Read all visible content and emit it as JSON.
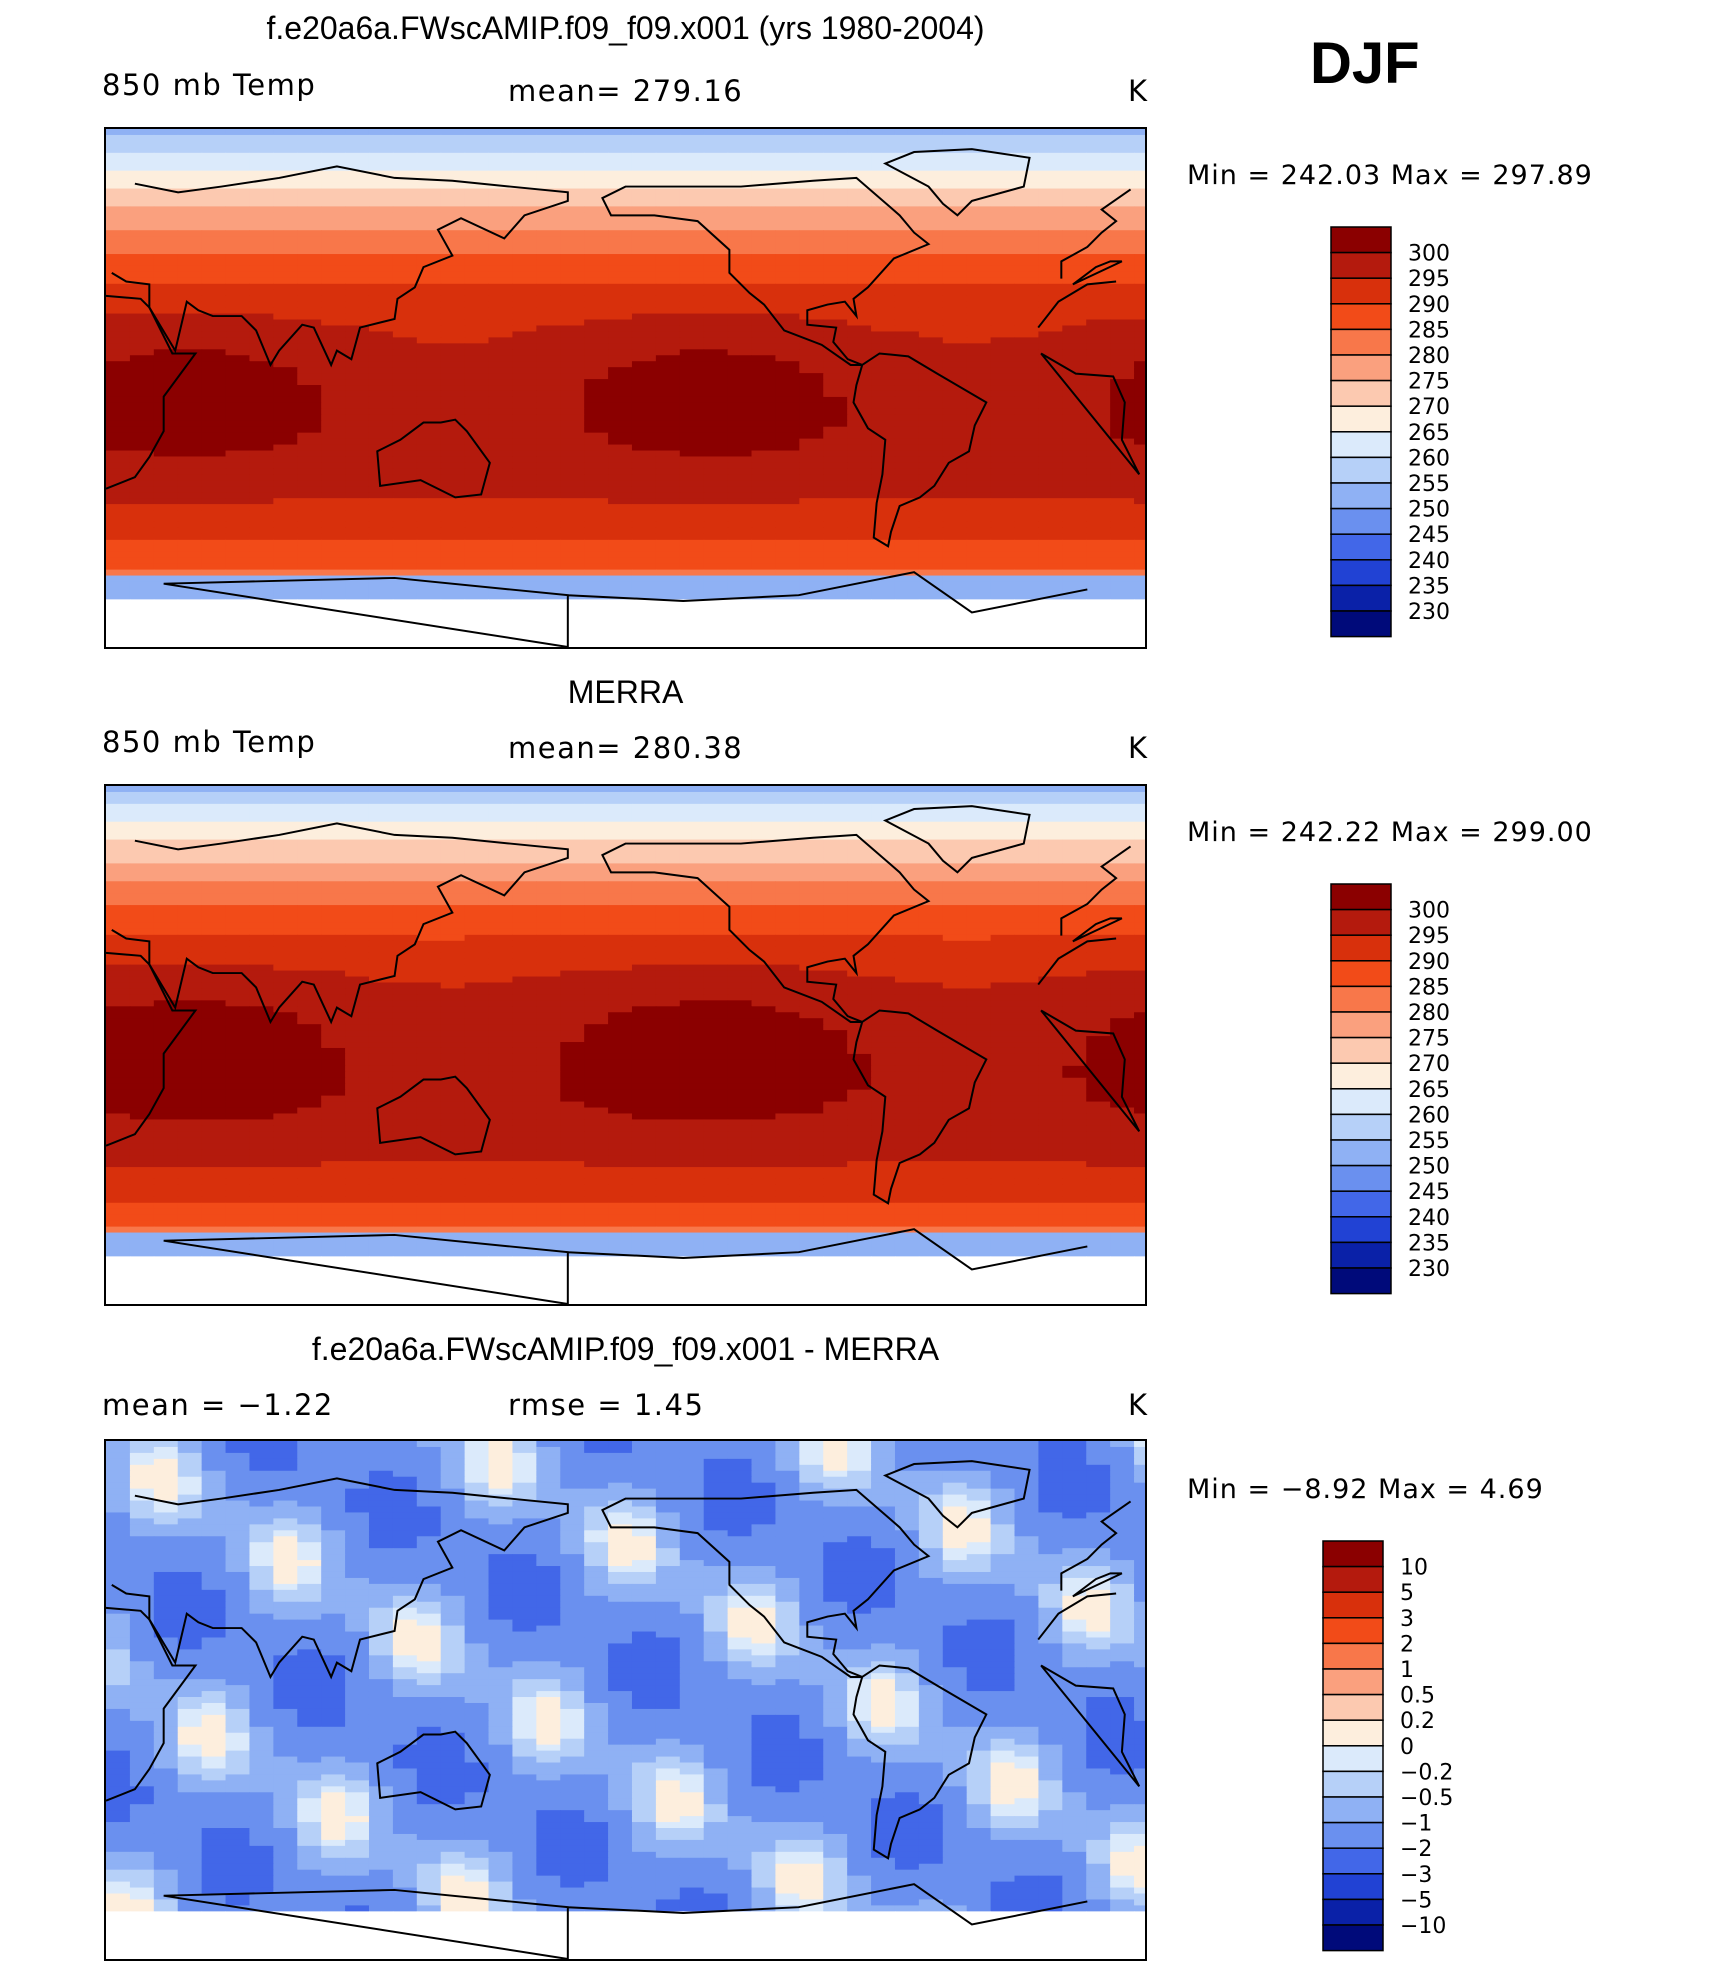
{
  "season": "DJF",
  "units": "K",
  "panels": [
    {
      "title": "f.e20a6a.FWscAMIP.f09_f09.x001 (yrs 1980-2004)",
      "variable": "850 mb Temp",
      "stat": "mean=  279.16",
      "units": "K",
      "minmax": "Min  =  242.03  Max  =  297.89",
      "kind": "abs",
      "offset": 0
    },
    {
      "title": "MERRA",
      "variable": "850 mb Temp",
      "stat": "mean=  280.38",
      "units": "K",
      "minmax": "Min  =  242.22  Max  =  299.00",
      "kind": "abs",
      "offset": 1
    },
    {
      "title": "f.e20a6a.FWscAMIP.f09_f09.x001 - MERRA",
      "variable": "mean  =    −1.22",
      "stat": "rmse  =     1.45",
      "units": "K",
      "minmax": "Min  =    −8.92  Max  =       4.69",
      "kind": "diff",
      "offset": 0
    }
  ],
  "chart_data": [
    {
      "type": "heatmap",
      "title": "f.e20a6a.FWscAMIP.f09_f09.x001 (yrs 1980-2004)",
      "variable": "850 mb Temp",
      "units": "K",
      "mean": 279.16,
      "min": 242.03,
      "max": 297.89,
      "levels": [
        "300",
        "295",
        "290",
        "285",
        "280",
        "275",
        "270",
        "265",
        "260",
        "255",
        "250",
        "245",
        "240",
        "235",
        "230"
      ],
      "colors": [
        "#8b0000",
        "#b41a0d",
        "#d8300c",
        "#f24b18",
        "#f8774a",
        "#faa07e",
        "#fcc9b0",
        "#fdeedd",
        "#dbeafb",
        "#b6d0f8",
        "#8fb1f4",
        "#6a90ef",
        "#4267e8",
        "#2142d4",
        "#0a21a8",
        "#000a7a"
      ]
    },
    {
      "type": "heatmap",
      "title": "MERRA",
      "variable": "850 mb Temp",
      "units": "K",
      "mean": 280.38,
      "min": 242.22,
      "max": 299.0,
      "levels": [
        "300",
        "295",
        "290",
        "285",
        "280",
        "275",
        "270",
        "265",
        "260",
        "255",
        "250",
        "245",
        "240",
        "235",
        "230"
      ],
      "colors": [
        "#8b0000",
        "#b41a0d",
        "#d8300c",
        "#f24b18",
        "#f8774a",
        "#faa07e",
        "#fcc9b0",
        "#fdeedd",
        "#dbeafb",
        "#b6d0f8",
        "#8fb1f4",
        "#6a90ef",
        "#4267e8",
        "#2142d4",
        "#0a21a8",
        "#000a7a"
      ]
    },
    {
      "type": "heatmap",
      "title": "f.e20a6a.FWscAMIP.f09_f09.x001 - MERRA",
      "units": "K",
      "mean": -1.22,
      "rmse": 1.45,
      "min": -8.92,
      "max": 4.69,
      "levels": [
        "10",
        "5",
        "3",
        "2",
        "1",
        "0.5",
        "0.2",
        "0",
        "−0.2",
        "−0.5",
        "−1",
        "−2",
        "−3",
        "−5",
        "−10"
      ],
      "colors": [
        "#8b0000",
        "#b41a0d",
        "#d8300c",
        "#f24b18",
        "#f8774a",
        "#faa07e",
        "#fcc9b0",
        "#fdeedd",
        "#dbeafb",
        "#b6d0f8",
        "#8fb1f4",
        "#6a90ef",
        "#4267e8",
        "#2142d4",
        "#0a21a8",
        "#000a7a"
      ]
    }
  ]
}
